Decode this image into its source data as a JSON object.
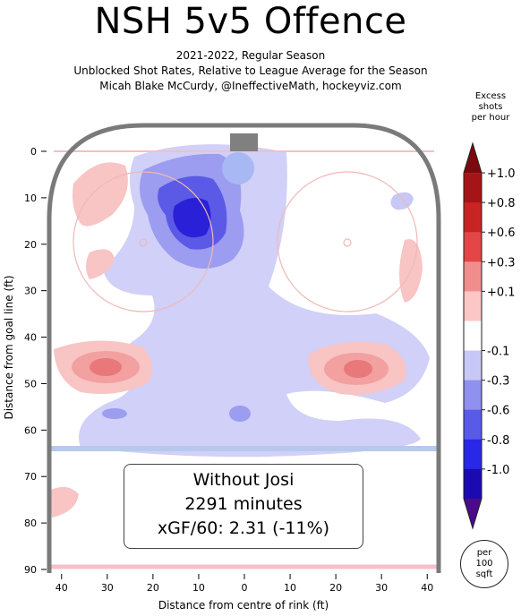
{
  "header": {
    "title": "NSH 5v5 Offence",
    "season": "2021-2022, Regular Season",
    "description": "Unblocked Shot Rates, Relative to League Average for the Season",
    "credit": "Micah Blake McCurdy, @IneffectiveMath, hockeyviz.com"
  },
  "annotation": {
    "line1": "Without Josi",
    "line2": "2291 minutes",
    "line3": "xGF/60: 2.31 (-11%)"
  },
  "legend": {
    "title_lines": [
      "Excess",
      "shots",
      "per hour"
    ],
    "ticks": [
      "+1.0",
      "+0.8",
      "+0.6",
      "+0.3",
      "+0.1",
      "-0.1",
      "-0.3",
      "-0.6",
      "-0.8",
      "-1.0"
    ],
    "colors": [
      "#7a0a0e",
      "#a51417",
      "#c92424",
      "#e24646",
      "#f08e8e",
      "#fac6c6",
      "#ffffff",
      "#c8c8f6",
      "#9090ee",
      "#5a5ae8",
      "#2828e6",
      "#1a0ab0",
      "#4a0a8a"
    ],
    "per_label_lines": [
      "per",
      "100",
      "sqft"
    ]
  },
  "chart_data": {
    "type": "heatmap",
    "title": "NSH 5v5 Offence",
    "xlabel": "Distance from centre of rink (ft)",
    "ylabel": "Distance from goal line (ft)",
    "xlim": [
      -42.5,
      42.5
    ],
    "ylim": [
      0,
      90
    ],
    "x_ticks": [
      "40",
      "30",
      "20",
      "10",
      "0",
      "10",
      "20",
      "30",
      "40"
    ],
    "y_ticks": [
      "0",
      "10",
      "20",
      "30",
      "40",
      "50",
      "60",
      "70",
      "80",
      "90"
    ],
    "colorbar_range": [
      -1.0,
      1.0
    ],
    "regions": [
      {
        "name": "slot-deficit",
        "x": -8,
        "y": 14,
        "value": -0.8
      },
      {
        "name": "left-crease-deficit",
        "x": -3,
        "y": 5,
        "value": -0.3
      },
      {
        "name": "left-point-excess",
        "x": -30,
        "y": 46,
        "value": 0.6
      },
      {
        "name": "right-point-excess",
        "x": 25,
        "y": 47,
        "value": 0.6
      },
      {
        "name": "left-faceoff-excess",
        "x": -32,
        "y": 8,
        "value": 0.1
      },
      {
        "name": "right-wall-excess",
        "x": 38,
        "y": 30,
        "value": 0.1
      },
      {
        "name": "right-top-deficit",
        "x": 30,
        "y": 11,
        "value": -0.1
      },
      {
        "name": "left-neutral-excess",
        "x": -37,
        "y": 76,
        "value": 0.1
      },
      {
        "name": "blueline-deficit-left",
        "x": -30,
        "y": 56,
        "value": -0.3
      },
      {
        "name": "blueline-deficit-centre",
        "x": 0,
        "y": 57,
        "value": -0.3
      }
    ]
  }
}
